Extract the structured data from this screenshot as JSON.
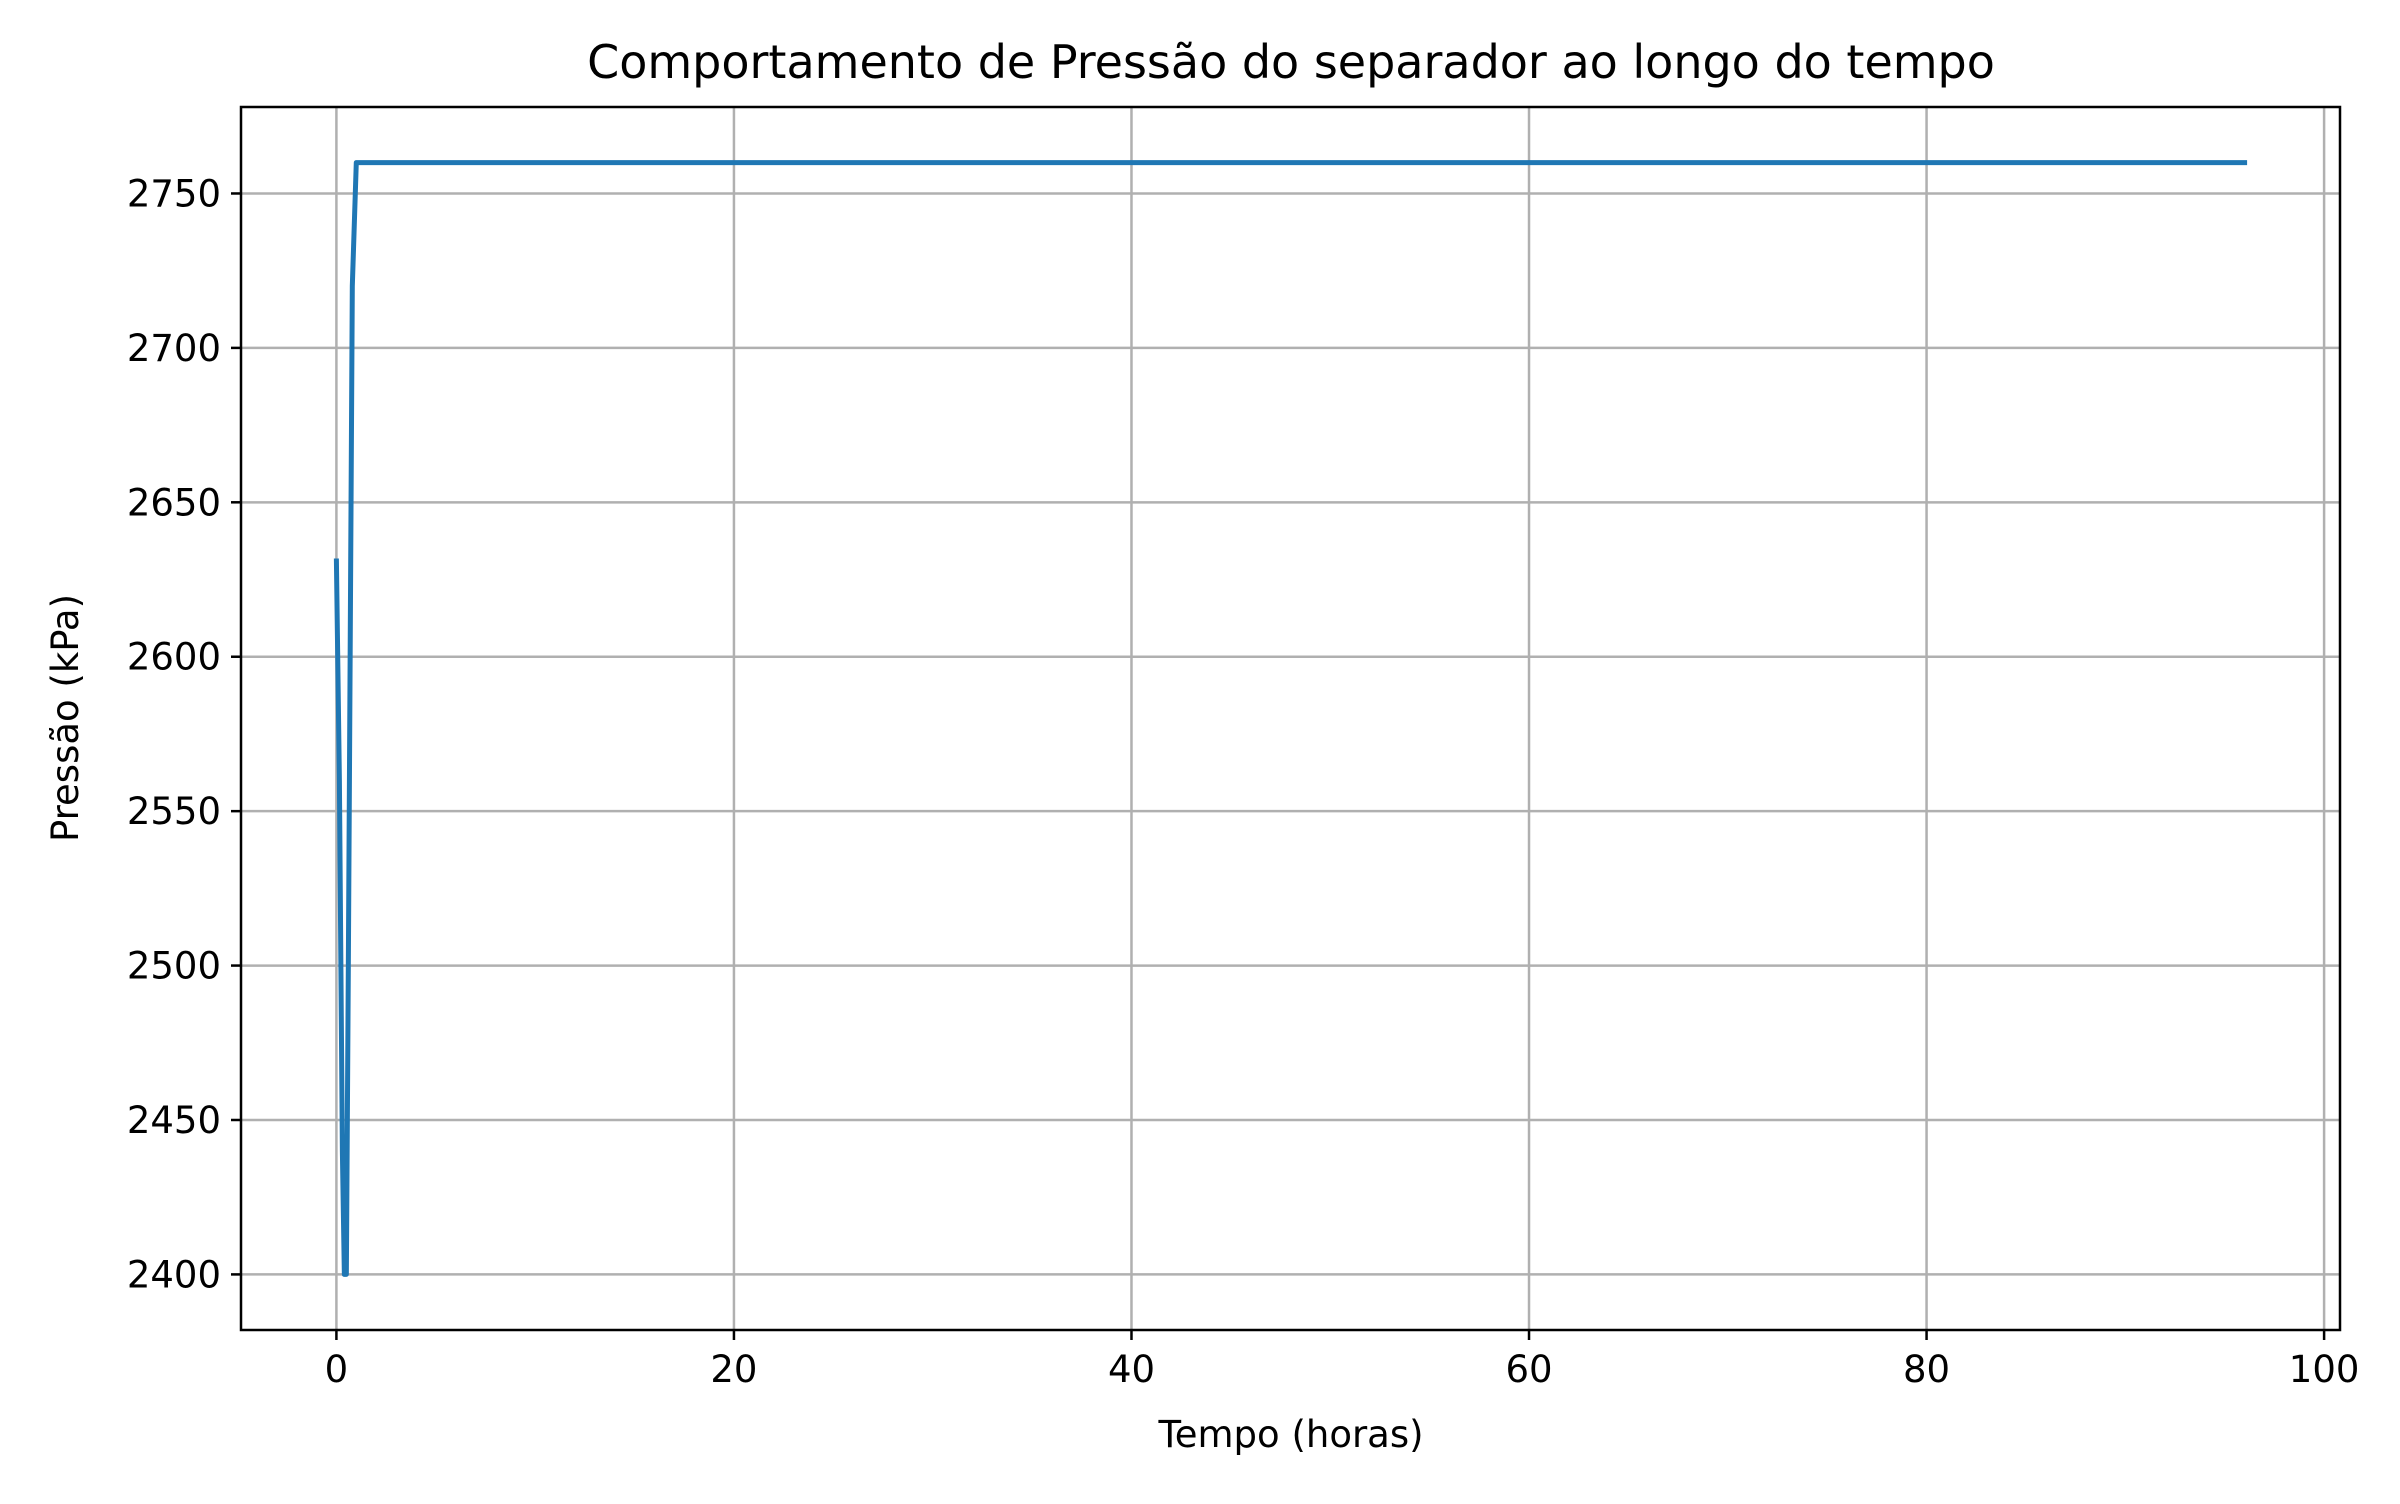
{
  "chart_data": {
    "type": "line",
    "title": "Comportamento de Pressão do separador ao longo do tempo",
    "xlabel": "Tempo (horas)",
    "ylabel": "Pressão (kPa)",
    "xlim": [
      -4.8,
      100.8
    ],
    "ylim": [
      2382,
      2778
    ],
    "x_ticks": [
      0,
      20,
      40,
      60,
      80,
      100
    ],
    "x_tick_labels": [
      "0",
      "20",
      "40",
      "60",
      "80",
      "100"
    ],
    "y_ticks": [
      2400,
      2450,
      2500,
      2550,
      2600,
      2650,
      2700,
      2750
    ],
    "y_tick_labels": [
      "2400",
      "2450",
      "2500",
      "2550",
      "2600",
      "2650",
      "2700",
      "2750"
    ],
    "grid": true,
    "series": [
      {
        "color": "#1f77b4",
        "x": [
          0,
          0.15,
          0.3,
          0.4,
          0.5,
          0.6,
          0.8,
          1.0,
          5,
          20,
          40,
          60,
          80,
          96
        ],
        "y": [
          2631,
          2560,
          2440,
          2400,
          2400,
          2500,
          2720,
          2760,
          2760,
          2760,
          2760,
          2760,
          2760,
          2760
        ]
      }
    ]
  }
}
